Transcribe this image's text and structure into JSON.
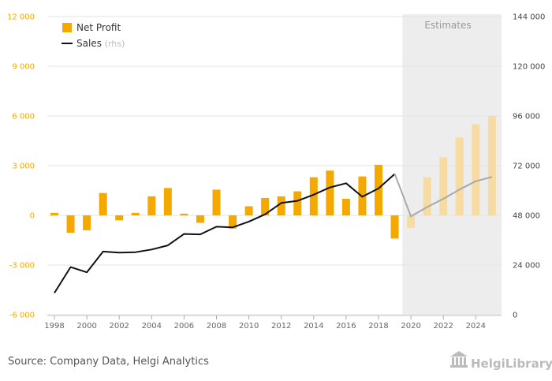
{
  "source": "Source: Company Data, Helgi Analytics",
  "logo_text": "HelgiLibrary",
  "estimates_label": "Estimates",
  "colors": {
    "bar": "#F5A800",
    "bar_estimate": "#F6DCA3",
    "sales_line": "#111111",
    "sales_line_estimate": "#A9A9A9",
    "estimates_bg": "#EDEDED",
    "left_axis_text": "#F5A800"
  },
  "chart_data": {
    "type": "bar",
    "categories": [
      "1998",
      "1999",
      "2000",
      "2001",
      "2002",
      "2003",
      "2004",
      "2005",
      "2006",
      "2007",
      "2008",
      "2009",
      "2010",
      "2011",
      "2012",
      "2013",
      "2014",
      "2015",
      "2016",
      "2017",
      "2018",
      "2019",
      "2020",
      "2021",
      "2022",
      "2023",
      "2024",
      "2025"
    ],
    "x_tick_labels": [
      "1998",
      "2000",
      "2002",
      "2004",
      "2006",
      "2008",
      "2010",
      "2012",
      "2014",
      "2016",
      "2018",
      "2020",
      "2022",
      "2024"
    ],
    "estimates_from": "2020",
    "series": [
      {
        "name": "Net Profit",
        "axis": "left",
        "type": "bar",
        "values": [
          150,
          -1050,
          -900,
          1350,
          -300,
          150,
          1150,
          1650,
          100,
          -450,
          1550,
          -800,
          550,
          1050,
          1150,
          1450,
          2300,
          2700,
          1000,
          2350,
          3050,
          -1400,
          -750,
          2300,
          3500,
          4700,
          5500,
          6000
        ]
      },
      {
        "name": "Sales",
        "name_suffix": "(rhs)",
        "axis": "right",
        "type": "line",
        "values": [
          10500,
          23000,
          20500,
          30500,
          30000,
          30200,
          31500,
          33500,
          39000,
          38800,
          42500,
          42200,
          45000,
          48500,
          54000,
          55000,
          58000,
          61500,
          63500,
          57000,
          61000,
          68000,
          47500,
          52000,
          56000,
          60500,
          64500,
          66500
        ]
      }
    ],
    "y_left": {
      "ylim": [
        -6000,
        12000
      ],
      "ticks": [
        "-6 000",
        "-3 000",
        "0",
        "3 000",
        "6 000",
        "9 000",
        "12 000"
      ],
      "tick_values": [
        -6000,
        -3000,
        0,
        3000,
        6000,
        9000,
        12000
      ]
    },
    "y_right": {
      "ylim": [
        0,
        144000
      ],
      "ticks": [
        "0",
        "24 000",
        "48 000",
        "72 000",
        "96 000",
        "120 000",
        "144 000"
      ],
      "tick_values": [
        0,
        24000,
        48000,
        72000,
        96000,
        120000,
        144000
      ]
    },
    "grid": true,
    "legend_position": "top-left"
  }
}
